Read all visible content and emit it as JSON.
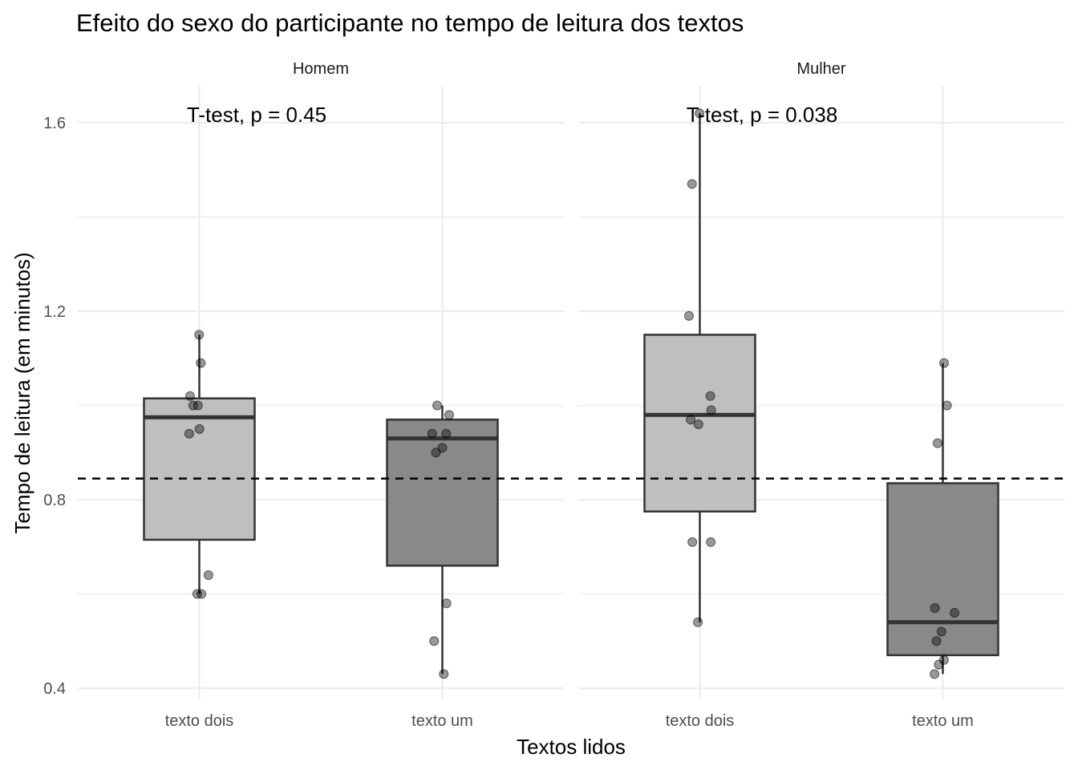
{
  "chart_data": {
    "type": "box",
    "title": "Efeito do sexo do participante no tempo de leitura dos textos",
    "xlabel": "Textos lidos",
    "ylabel": "Tempo de leitura (em minutos)",
    "ylim": [
      0.38,
      1.67
    ],
    "yticks": [
      0.4,
      0.8,
      1.2,
      1.6
    ],
    "yticks_labels": [
      "0.4",
      "0.8",
      "1.2",
      "1.6"
    ],
    "ref_line": 0.845,
    "grid": true,
    "fill_colors": {
      "texto dois": "#bfbfbf",
      "texto um": "#898989"
    },
    "panels": [
      {
        "strip": "Homem",
        "annotation": "T-test, p = 0.45",
        "categories": [
          "texto dois",
          "texto um"
        ],
        "boxes": [
          {
            "category": "texto dois",
            "whisker_low": 0.6,
            "q1": 0.715,
            "median": 0.975,
            "q3": 1.015,
            "whisker_high": 1.15,
            "points": [
              1.15,
              1.09,
              1.02,
              1.0,
              1.0,
              0.95,
              0.94,
              0.64,
              0.6,
              0.6
            ]
          },
          {
            "category": "texto um",
            "whisker_low": 0.43,
            "q1": 0.66,
            "median": 0.93,
            "q3": 0.97,
            "whisker_high": 1.0,
            "points": [
              1.0,
              0.98,
              0.94,
              0.94,
              0.91,
              0.9,
              0.58,
              0.5,
              0.43
            ]
          }
        ]
      },
      {
        "strip": "Mulher",
        "annotation": "T-test, p = 0.038",
        "categories": [
          "texto dois",
          "texto um"
        ],
        "boxes": [
          {
            "category": "texto dois",
            "whisker_low": 0.54,
            "q1": 0.775,
            "median": 0.98,
            "q3": 1.15,
            "whisker_high": 1.62,
            "points": [
              1.62,
              1.47,
              1.19,
              1.02,
              0.99,
              0.97,
              0.96,
              0.71,
              0.71,
              0.54
            ]
          },
          {
            "category": "texto um",
            "whisker_low": 0.43,
            "q1": 0.47,
            "median": 0.54,
            "q3": 0.835,
            "whisker_high": 1.09,
            "points": [
              1.09,
              1.0,
              0.92,
              0.57,
              0.56,
              0.52,
              0.5,
              0.46,
              0.45,
              0.43
            ]
          }
        ]
      }
    ]
  }
}
